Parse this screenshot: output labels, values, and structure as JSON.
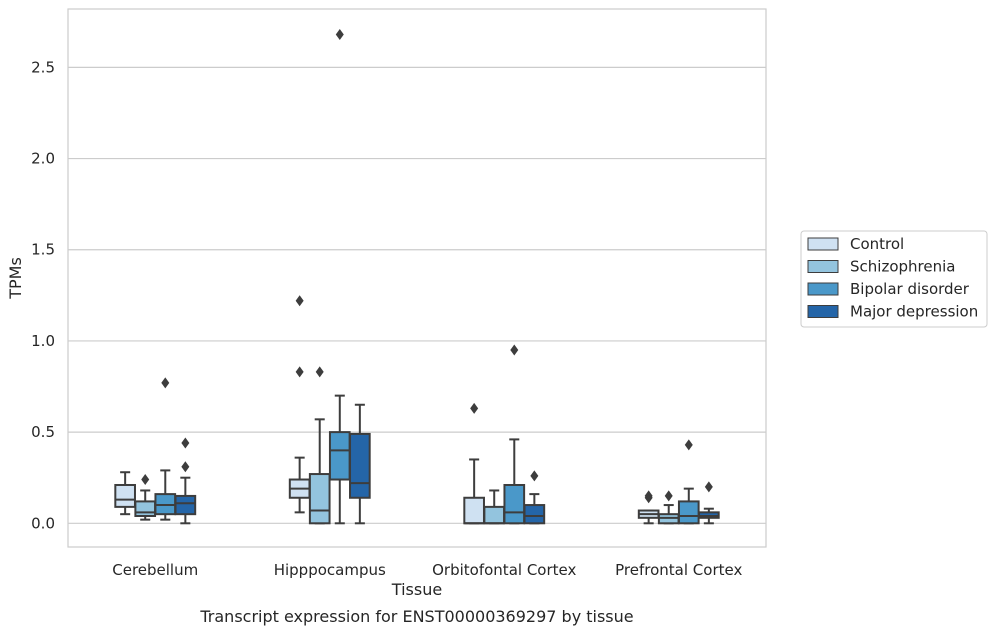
{
  "caption": "Transcript expression for ENST00000369297 by tissue",
  "chart_data": {
    "type": "boxplot",
    "xlabel": "Tissue",
    "ylabel": "TPMs",
    "ylim": [
      -0.13,
      2.82
    ],
    "yticks": [
      "0.0",
      "0.5",
      "1.0",
      "1.5",
      "2.0",
      "2.5"
    ],
    "ytick_values": [
      0.0,
      0.5,
      1.0,
      1.5,
      2.0,
      2.5
    ],
    "grid": "horizontal",
    "legend_position": "right",
    "categories": [
      "Cerebellum",
      "Hipppocampus",
      "Orbitofontal Cortex",
      "Prefrontal Cortex"
    ],
    "series": [
      {
        "name": "Control",
        "color": "#cfe1f2",
        "boxes": [
          {
            "whislo": 0.05,
            "q1": 0.09,
            "med": 0.13,
            "q3": 0.21,
            "whishi": 0.28,
            "fliers": []
          },
          {
            "whislo": 0.06,
            "q1": 0.14,
            "med": 0.19,
            "q3": 0.24,
            "whishi": 0.36,
            "fliers": [
              0.83,
              1.22
            ]
          },
          {
            "whislo": 0.0,
            "q1": 0.0,
            "med": 0.0,
            "q3": 0.14,
            "whishi": 0.35,
            "fliers": [
              0.63
            ]
          },
          {
            "whislo": 0.0,
            "q1": 0.03,
            "med": 0.05,
            "q3": 0.07,
            "whishi": 0.07,
            "fliers": [
              0.14,
              0.15
            ]
          }
        ]
      },
      {
        "name": "Schizophrenia",
        "color": "#93c4de",
        "boxes": [
          {
            "whislo": 0.02,
            "q1": 0.04,
            "med": 0.06,
            "q3": 0.12,
            "whishi": 0.18,
            "fliers": [
              0.24
            ]
          },
          {
            "whislo": 0.0,
            "q1": 0.0,
            "med": 0.07,
            "q3": 0.27,
            "whishi": 0.57,
            "fliers": [
              0.83
            ]
          },
          {
            "whislo": 0.0,
            "q1": 0.0,
            "med": 0.0,
            "q3": 0.09,
            "whishi": 0.18,
            "fliers": []
          },
          {
            "whislo": 0.0,
            "q1": 0.0,
            "med": 0.03,
            "q3": 0.05,
            "whishi": 0.1,
            "fliers": [
              0.15
            ]
          }
        ]
      },
      {
        "name": "Bipolar disorder",
        "color": "#4a98c9",
        "boxes": [
          {
            "whislo": 0.02,
            "q1": 0.05,
            "med": 0.1,
            "q3": 0.16,
            "whishi": 0.29,
            "fliers": [
              0.77
            ]
          },
          {
            "whislo": 0.0,
            "q1": 0.24,
            "med": 0.4,
            "q3": 0.5,
            "whishi": 0.7,
            "fliers": [
              2.68
            ]
          },
          {
            "whislo": 0.0,
            "q1": 0.0,
            "med": 0.06,
            "q3": 0.21,
            "whishi": 0.46,
            "fliers": [
              0.95
            ]
          },
          {
            "whislo": 0.0,
            "q1": 0.0,
            "med": 0.04,
            "q3": 0.12,
            "whishi": 0.19,
            "fliers": [
              0.43
            ]
          }
        ]
      },
      {
        "name": "Major depression",
        "color": "#2465a8",
        "boxes": [
          {
            "whislo": 0.0,
            "q1": 0.05,
            "med": 0.11,
            "q3": 0.15,
            "whishi": 0.25,
            "fliers": [
              0.31,
              0.44
            ]
          },
          {
            "whislo": 0.0,
            "q1": 0.14,
            "med": 0.22,
            "q3": 0.49,
            "whishi": 0.65,
            "fliers": []
          },
          {
            "whislo": 0.0,
            "q1": 0.0,
            "med": 0.04,
            "q3": 0.1,
            "whishi": 0.16,
            "fliers": [
              0.26
            ]
          },
          {
            "whislo": 0.0,
            "q1": 0.03,
            "med": 0.04,
            "q3": 0.06,
            "whishi": 0.08,
            "fliers": [
              0.2
            ]
          }
        ]
      }
    ]
  }
}
